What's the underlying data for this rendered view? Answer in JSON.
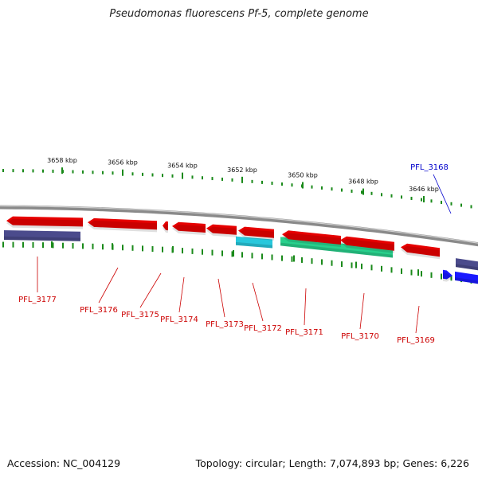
{
  "title": "Pseudomonas fluorescens Pf-5, complete genome",
  "footer": {
    "accession": "Accession: NC_004129",
    "topology": "Topology: circular; Length: 7,074,893 bp; Genes: 6,226"
  },
  "colors": {
    "forward_gene": "#1a1aff",
    "reverse_gene": "#e60000",
    "forward_feature": "#4b4b8c",
    "reverse_feature": "#28c8dc",
    "other_feature": "#28d08c",
    "backbone": "#8a8a8a",
    "ticks": "#1a8a1a",
    "forward_label": "#0000cc",
    "reverse_label": "#cc0000"
  },
  "scale_labels": [
    "3658 kbp",
    "3656 kbp",
    "3654 kbp",
    "3652 kbp",
    "3650 kbp",
    "3648 kbp",
    "3646 kbp"
  ],
  "gene_labels": {
    "forward": [
      "PFL_3168"
    ],
    "reverse": [
      "PFL_3177",
      "PFL_3176",
      "PFL_3175",
      "PFL_3174",
      "PFL_3173",
      "PFL_3172",
      "PFL_3171",
      "PFL_3170",
      "PFL_3169"
    ]
  }
}
